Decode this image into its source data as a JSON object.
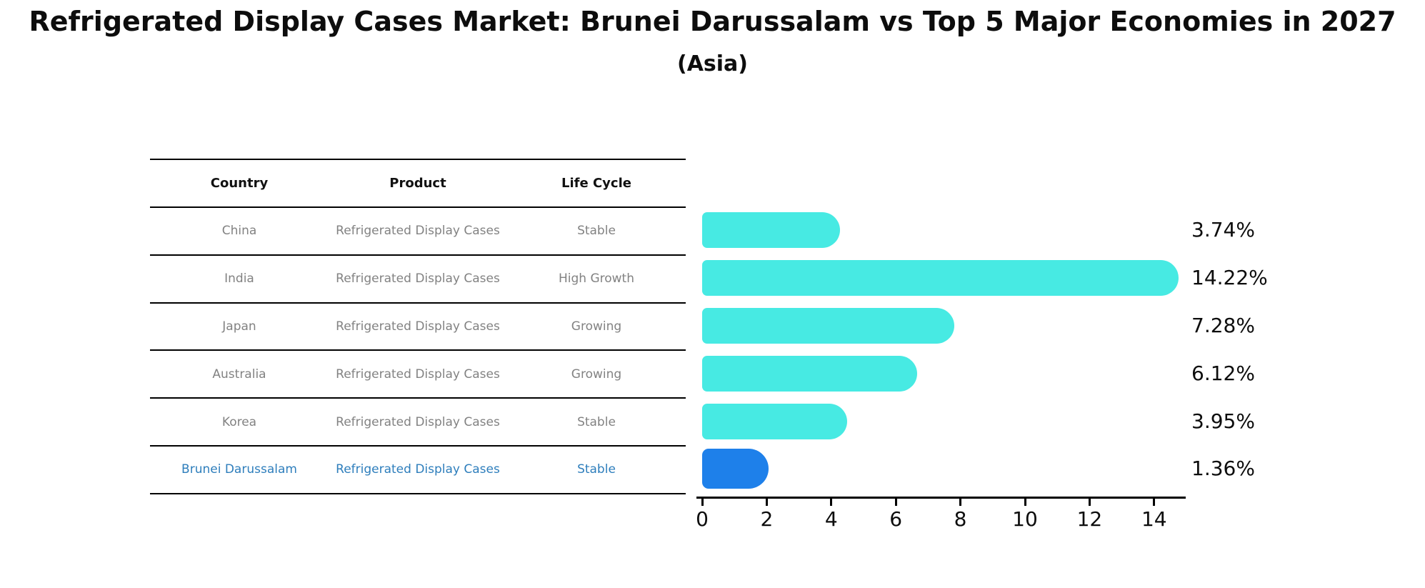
{
  "title": "Refrigerated Display Cases Market: Brunei Darussalam vs Top 5 Major Economies in 2027",
  "subtitle": "(Asia)",
  "colors": {
    "bar": "#47EAE3",
    "highlight_bar": "#1E80EA",
    "highlight_text": "#2E7EBC",
    "table_text": "#828282",
    "axis": "#000000"
  },
  "table": {
    "headers": [
      "Country",
      "Product",
      "Life Cycle"
    ],
    "rows": [
      {
        "country": "China",
        "product": "Refrigerated Display Cases",
        "life_cycle": "Stable",
        "highlight": false
      },
      {
        "country": "India",
        "product": "Refrigerated Display Cases",
        "life_cycle": "High Growth",
        "highlight": false
      },
      {
        "country": "Japan",
        "product": "Refrigerated Display Cases",
        "life_cycle": "Growing",
        "highlight": false
      },
      {
        "country": "Australia",
        "product": "Refrigerated Display Cases",
        "life_cycle": "Growing",
        "highlight": false
      },
      {
        "country": "Korea",
        "product": "Refrigerated Display Cases",
        "life_cycle": "Stable",
        "highlight": false
      },
      {
        "country": "Brunei Darussalam",
        "product": "Refrigerated Display Cases",
        "life_cycle": "Stable",
        "highlight": true
      }
    ]
  },
  "chart_data": {
    "type": "bar",
    "orientation": "horizontal",
    "title": "Refrigerated Display Cases Market: Brunei Darussalam vs Top 5 Major Economies in 2027 (Asia)",
    "categories": [
      "China",
      "India",
      "Japan",
      "Australia",
      "Korea",
      "Brunei Darussalam"
    ],
    "values": [
      3.74,
      14.22,
      7.28,
      6.12,
      3.95,
      1.36
    ],
    "value_labels": [
      "3.74%",
      "14.22%",
      "7.28%",
      "6.12%",
      "3.95%",
      "1.36%"
    ],
    "highlight_index": 5,
    "xlabel": "",
    "ylabel": "",
    "xlim": [
      0,
      15
    ],
    "xticks": [
      0,
      2,
      4,
      6,
      8,
      10,
      12,
      14
    ],
    "grid": false,
    "legend": false
  }
}
